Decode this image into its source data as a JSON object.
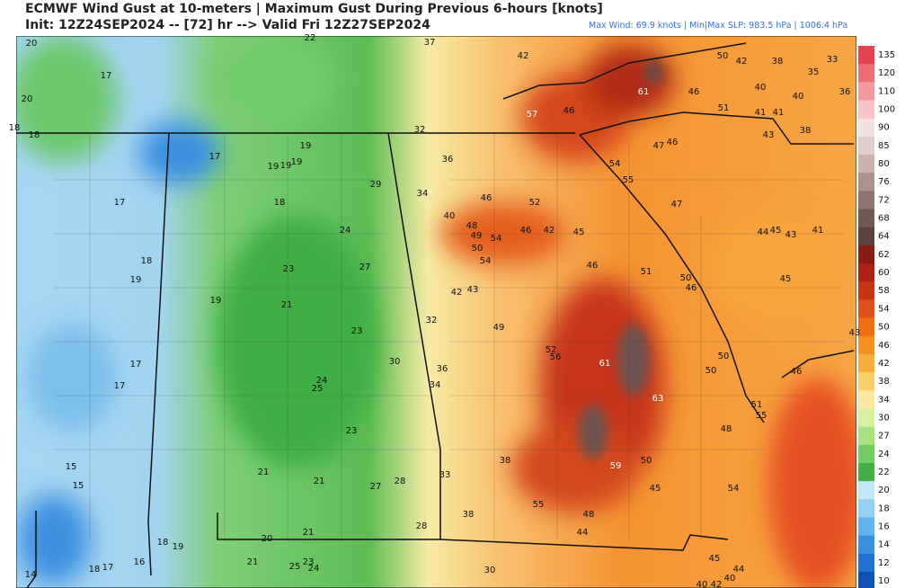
{
  "header": {
    "title": "ECMWF Wind Gust at 10-meters | Maximum Gust During Previous 6-hours [knots]",
    "subtitle": "Init: 12Z24SEP2024 -- [72] hr --> Valid Fri 12Z27SEP2024",
    "info": "Max Wind: 69.9 knots | Min|Max SLP: 983.5 hPa | 1006.4 hPa"
  },
  "colorbar": {
    "levels": [
      135,
      120,
      110,
      100,
      90,
      85,
      80,
      76,
      72,
      68,
      64,
      62,
      60,
      58,
      54,
      50,
      46,
      42,
      38,
      34,
      30,
      27,
      24,
      22,
      20,
      18,
      16,
      14,
      12,
      10
    ],
    "colors": [
      "#e2434f",
      "#ec6f78",
      "#f39aa0",
      "#f9c4c8",
      "#f3e1e1",
      "#e1cdcc",
      "#cbb3b1",
      "#ab9290",
      "#8d7472",
      "#705a58",
      "#5a423f",
      "#8a1c16",
      "#ac2112",
      "#c73515",
      "#de5017",
      "#ee7012",
      "#f48f20",
      "#f8ae3e",
      "#fbcf6e",
      "#fce7a3",
      "#d9f0a2",
      "#a9e081",
      "#72cc61",
      "#42b043",
      "#c2e7f7",
      "#93d0f1",
      "#62b1e9",
      "#3a90e0",
      "#2171d1",
      "#1251b1"
    ]
  },
  "map": {
    "values": [
      20,
      22,
      37,
      42,
      50,
      42,
      38,
      33,
      35,
      17,
      61,
      46,
      40,
      40,
      36,
      20,
      51,
      41,
      41,
      57,
      46,
      18,
      18,
      32,
      43,
      38,
      19,
      47,
      46,
      17,
      19,
      19,
      19,
      36,
      54,
      55,
      29,
      17,
      18,
      34,
      46,
      52,
      47,
      40,
      48,
      49,
      54,
      46,
      42,
      45,
      24,
      44,
      45,
      43,
      41,
      50,
      54,
      18,
      27,
      23,
      46,
      51,
      50,
      46,
      45,
      19,
      42,
      43,
      19,
      21,
      32,
      49,
      23,
      43,
      52,
      56,
      61,
      50,
      17,
      30,
      36,
      50,
      46,
      24,
      25,
      17,
      34,
      63,
      51,
      55,
      48,
      23,
      38,
      50,
      59,
      15,
      21,
      21,
      15,
      27,
      28,
      33,
      45,
      54,
      55,
      38,
      48,
      28,
      44,
      18,
      19,
      20,
      21,
      45,
      16,
      18,
      17,
      21,
      23,
      25,
      24,
      30,
      14,
      44,
      40,
      40,
      42
    ]
  }
}
